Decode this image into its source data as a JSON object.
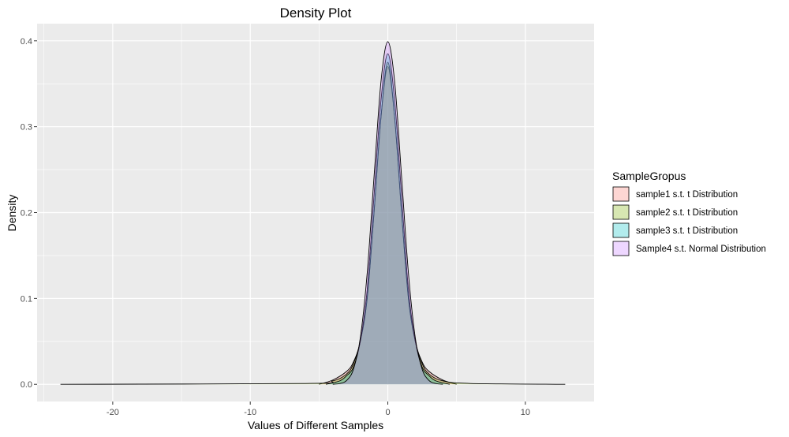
{
  "chart_data": {
    "type": "area",
    "title": "Density Plot",
    "xlabel": "Values of Different Samples",
    "ylabel": "Density",
    "xlim": [
      -25.5,
      15
    ],
    "ylim": [
      -0.02,
      0.42
    ],
    "x_ticks": [
      -20,
      -10,
      0,
      10
    ],
    "y_ticks": [
      0.0,
      0.1,
      0.2,
      0.3,
      0.4
    ],
    "x_tick_labels": [
      "-20",
      "-10",
      "0",
      "10"
    ],
    "y_tick_labels": [
      "0.0",
      "0.1",
      "0.2",
      "0.3",
      "0.4"
    ],
    "grid": true,
    "legend": {
      "title": "SampleGropus",
      "position": "right"
    },
    "series": [
      {
        "name": "sample1 s.t. t Distribution",
        "color": "#F8766D",
        "x": [
          -5,
          -4,
          -3,
          -2.5,
          -2,
          -1.5,
          -1,
          -0.5,
          0,
          0.5,
          1,
          1.5,
          2,
          2.5,
          3,
          4,
          5
        ],
        "y": [
          0.0,
          0.005,
          0.015,
          0.026,
          0.05,
          0.1,
          0.2,
          0.31,
          0.37,
          0.31,
          0.2,
          0.1,
          0.05,
          0.026,
          0.015,
          0.005,
          0.0
        ]
      },
      {
        "name": "sample2 s.t. t Distribution",
        "color": "#7CAE00",
        "x": [
          -23.8,
          -6,
          -4,
          -3,
          -2.5,
          -2,
          -1.5,
          -1,
          -0.5,
          0,
          0.5,
          1,
          1.5,
          2,
          2.5,
          3,
          4,
          6,
          12.9
        ],
        "y": [
          0.0,
          0.001,
          0.004,
          0.012,
          0.024,
          0.05,
          0.1,
          0.2,
          0.31,
          0.375,
          0.31,
          0.2,
          0.1,
          0.05,
          0.024,
          0.012,
          0.004,
          0.001,
          0.0
        ]
      },
      {
        "name": "sample3 s.t. t Distribution",
        "color": "#00BFC4",
        "x": [
          -4.5,
          -3.5,
          -3,
          -2.5,
          -2,
          -1.5,
          -1,
          -0.5,
          0,
          0.5,
          1,
          1.5,
          2,
          2.5,
          3,
          3.5,
          4.5
        ],
        "y": [
          0.0,
          0.004,
          0.01,
          0.02,
          0.05,
          0.11,
          0.22,
          0.33,
          0.385,
          0.33,
          0.22,
          0.11,
          0.05,
          0.02,
          0.01,
          0.004,
          0.0
        ]
      },
      {
        "name": "Sample4 s.t. Normal Distribution",
        "color": "#C77CFF",
        "x": [
          -4,
          -3.5,
          -3,
          -2.5,
          -2,
          -1.5,
          -1,
          -0.5,
          0,
          0.5,
          1,
          1.5,
          2,
          2.5,
          3,
          3.5,
          4
        ],
        "y": [
          0.0001,
          0.0009,
          0.0044,
          0.0175,
          0.054,
          0.1295,
          0.242,
          0.352,
          0.399,
          0.352,
          0.242,
          0.1295,
          0.054,
          0.0175,
          0.0044,
          0.0009,
          0.0001
        ]
      }
    ]
  }
}
